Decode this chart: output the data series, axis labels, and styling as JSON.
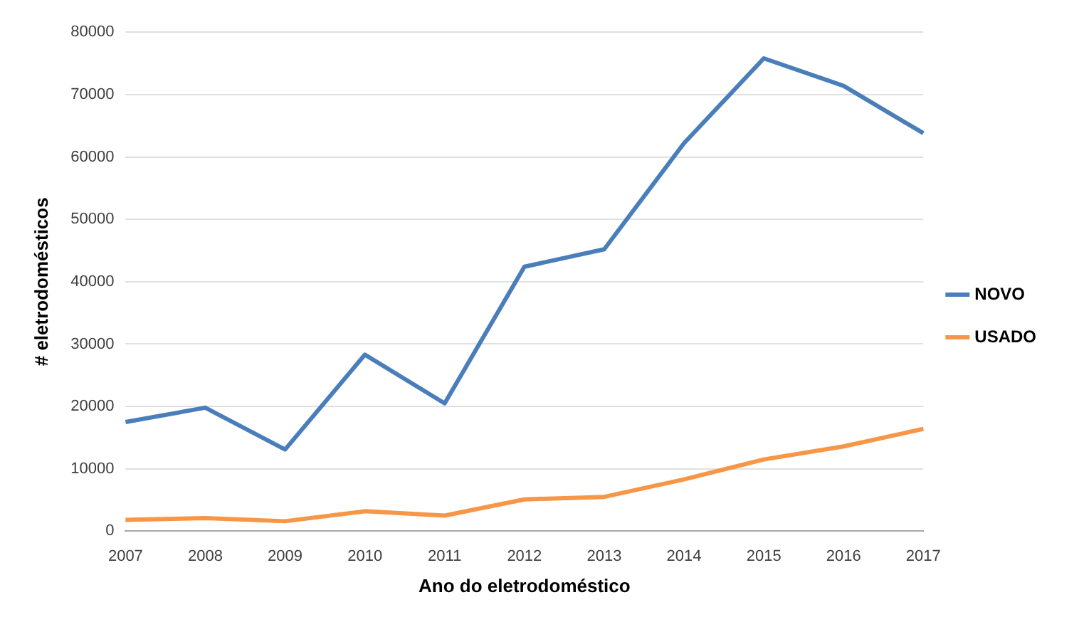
{
  "chart_data": {
    "type": "line",
    "xlabel": "Ano do eletrodoméstico",
    "ylabel": "# eletrodomésticos",
    "categories": [
      "2007",
      "2008",
      "2009",
      "2010",
      "2011",
      "2012",
      "2013",
      "2014",
      "2015",
      "2016",
      "2017"
    ],
    "series": [
      {
        "name": "NOVO",
        "color": "#4a7ebb",
        "values": [
          17500,
          19800,
          13100,
          28300,
          20500,
          42400,
          45200,
          62200,
          75800,
          71400,
          63800
        ]
      },
      {
        "name": "USADO",
        "color": "#f79646",
        "values": [
          1800,
          2100,
          1600,
          3200,
          2500,
          5100,
          5500,
          8300,
          11500,
          13600,
          16400
        ]
      }
    ],
    "ylim": [
      0,
      80000
    ],
    "yticks": [
      0,
      10000,
      20000,
      30000,
      40000,
      50000,
      60000,
      70000,
      80000
    ],
    "grid": "y",
    "legend": "right",
    "marker": "none",
    "line_style": "solid"
  }
}
